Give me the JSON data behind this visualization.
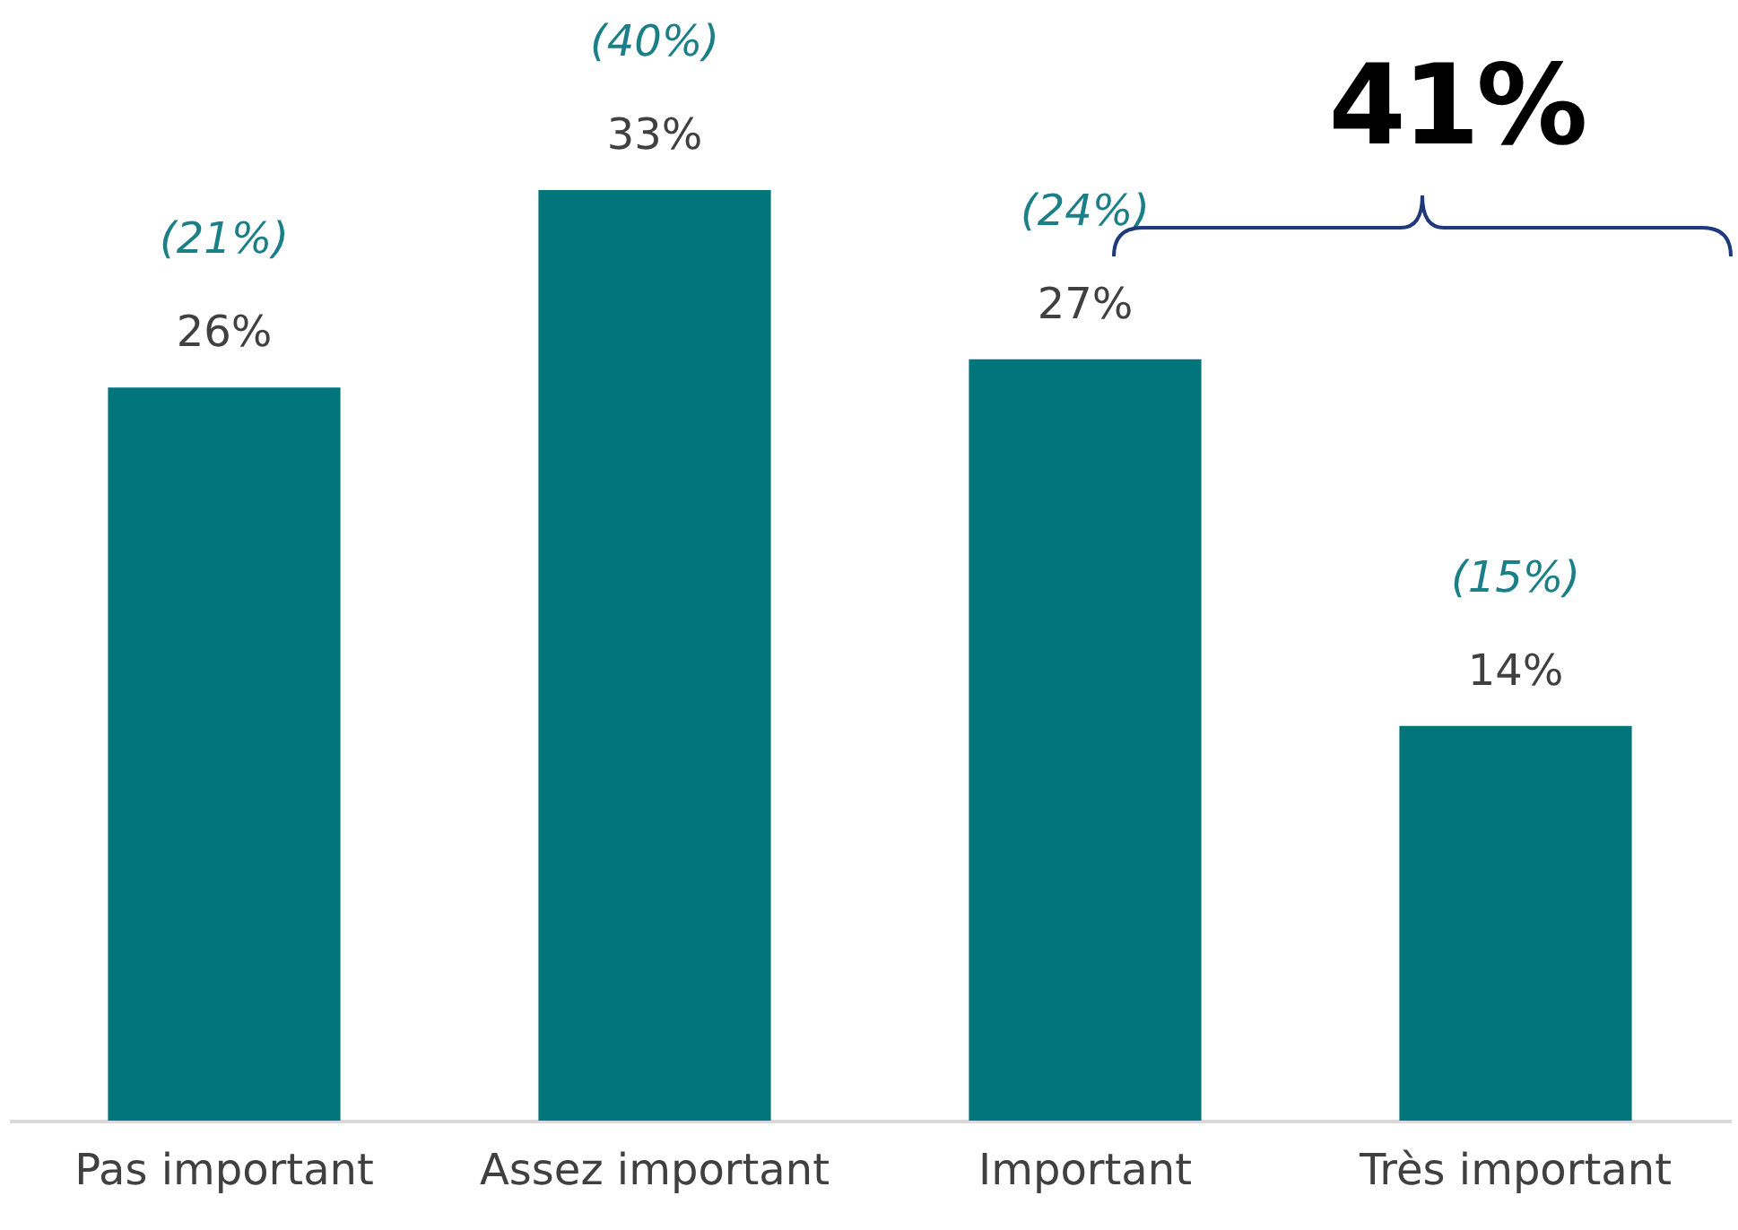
{
  "chart_data": {
    "type": "bar",
    "categories": [
      "Pas important",
      "Assez important",
      "Important",
      "Très important"
    ],
    "values": [
      26,
      33,
      27,
      14
    ],
    "color": "#00767c",
    "ylim": [
      0,
      33
    ],
    "value_labels": [
      "26%",
      "33%",
      "27%",
      "14%"
    ],
    "grid": false,
    "annotations": [
      {
        "text": "(21%)",
        "x": "Pas important",
        "y": 26
      },
      {
        "text": "(40%)",
        "x": "Assez important",
        "y": 33
      },
      {
        "text": "(24%)",
        "x": "Important",
        "y": 27
      },
      {
        "text": "(15%)",
        "x": "Très important",
        "y": 14
      },
      "41%"
    ]
  }
}
